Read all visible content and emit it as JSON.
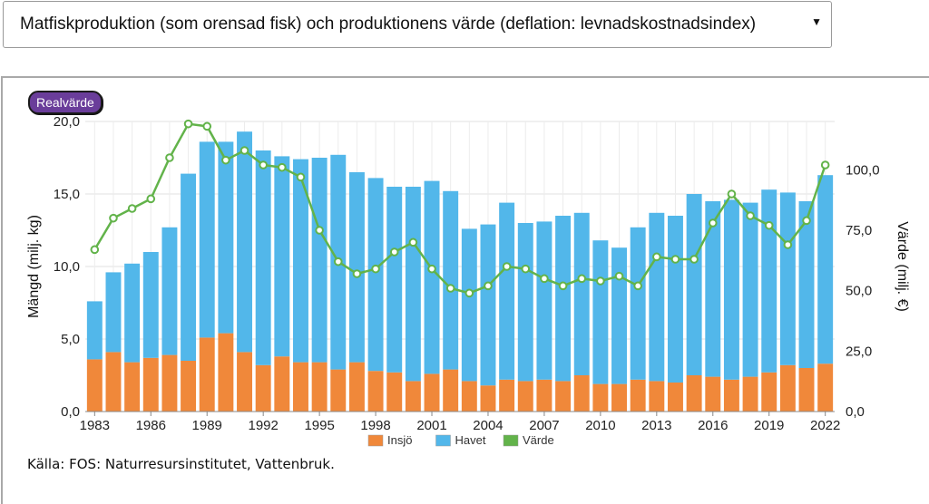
{
  "selector": {
    "label": "Matfiskproduktion (som orensad fisk) och produktionens värde (deflation: levnadskostnadsindex)"
  },
  "badge": {
    "label": "Realvärde"
  },
  "source": "Källa: FOS: Naturresursinstitutet, Vattenbruk.",
  "chart_data": {
    "type": "bar",
    "stacked": true,
    "years": [
      1983,
      1984,
      1985,
      1986,
      1987,
      1988,
      1989,
      1990,
      1991,
      1992,
      1993,
      1994,
      1995,
      1996,
      1997,
      1998,
      1999,
      2000,
      2001,
      2002,
      2003,
      2004,
      2005,
      2006,
      2007,
      2008,
      2009,
      2010,
      2011,
      2012,
      2013,
      2014,
      2015,
      2016,
      2017,
      2018,
      2019,
      2020,
      2021,
      2022
    ],
    "x_ticks": [
      "1983",
      "1986",
      "1989",
      "1992",
      "1995",
      "1998",
      "2001",
      "2004",
      "2007",
      "2010",
      "2013",
      "2016",
      "2019",
      "2022"
    ],
    "y_left": {
      "label": "Mängd (milj. kg)",
      "min": 0,
      "max": 20,
      "ticks": [
        "0,0",
        "5,0",
        "10,0",
        "15,0",
        "20,0"
      ]
    },
    "y_right": {
      "label": "Värde (milj. €)",
      "min": 0,
      "max": 120,
      "ticks": [
        "0,0",
        "25,0",
        "50,0",
        "75,0",
        "100,0"
      ]
    },
    "series": [
      {
        "name": "Insjö",
        "type": "bar",
        "axis": "left",
        "color": "#f0883a",
        "values": [
          3.6,
          4.1,
          3.4,
          3.7,
          3.9,
          3.5,
          5.1,
          5.4,
          4.1,
          3.2,
          3.8,
          3.4,
          3.4,
          2.9,
          3.4,
          2.8,
          2.7,
          2.1,
          2.6,
          2.9,
          2.1,
          1.8,
          2.2,
          2.1,
          2.2,
          2.1,
          2.5,
          1.9,
          1.9,
          2.2,
          2.1,
          2.0,
          2.5,
          2.4,
          2.2,
          2.4,
          2.7,
          3.2,
          3.0,
          3.3
        ]
      },
      {
        "name": "Havet",
        "type": "bar",
        "axis": "left",
        "color": "#52b7ea",
        "values": [
          4.0,
          5.5,
          6.8,
          7.3,
          8.8,
          12.9,
          13.5,
          13.2,
          15.2,
          14.8,
          13.8,
          14.0,
          14.1,
          14.8,
          13.1,
          13.3,
          12.8,
          13.4,
          13.3,
          12.3,
          10.5,
          11.1,
          12.2,
          10.9,
          10.9,
          11.4,
          11.2,
          9.9,
          9.4,
          10.5,
          11.6,
          11.5,
          12.5,
          12.1,
          12.4,
          12.0,
          12.6,
          11.9,
          11.5,
          13.0
        ]
      },
      {
        "name": "Värde",
        "type": "line",
        "axis": "right",
        "color": "#62b34a",
        "values": [
          67,
          80,
          84,
          88,
          105,
          119,
          118,
          104,
          108,
          102,
          101,
          97,
          75,
          62,
          57,
          59,
          66,
          70,
          59,
          51,
          49,
          52,
          60,
          59,
          55,
          52,
          55,
          54,
          56,
          52,
          64,
          63,
          63,
          78,
          90,
          81,
          77,
          69,
          79,
          102
        ]
      }
    ],
    "legend": "bottom-center",
    "grid": true
  }
}
